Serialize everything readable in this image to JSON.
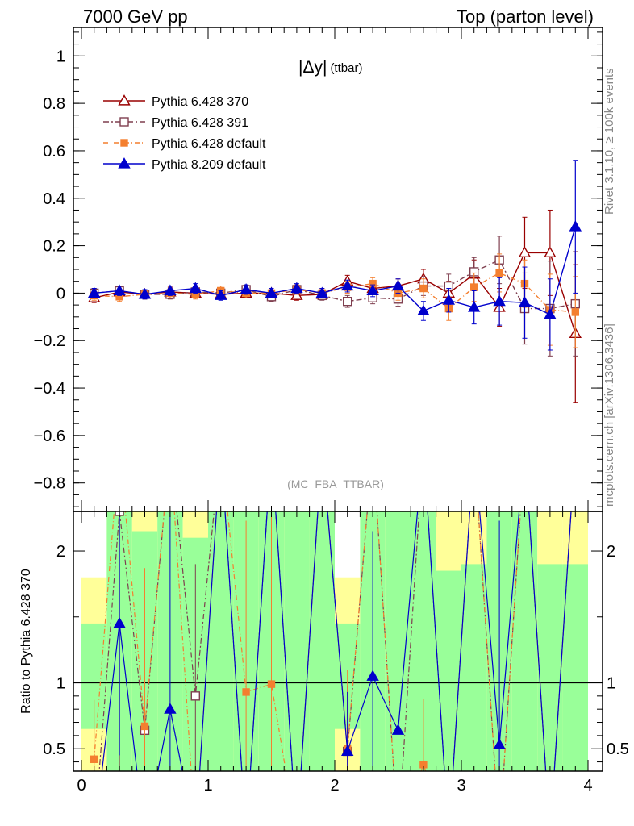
{
  "header": {
    "left": "7000 GeV pp",
    "right": "Top (parton level)"
  },
  "side_labels": {
    "rivet": "Rivet 3.1.10, ≥ 100k events",
    "mcplots": "mcplots.cern.ch [arXiv:1306.3436]"
  },
  "chart_data": {
    "type": "line",
    "title": "|Δy| (ttbar)",
    "title_main": "|Δy|",
    "title_sub": "(ttbar)",
    "watermark": "(MC_FBA_TTBAR)",
    "xlim": [
      0,
      4
    ],
    "ylim": [
      -0.92,
      1.12
    ],
    "x_ticks": [
      0,
      1,
      2,
      3,
      4
    ],
    "y_ticks": [
      -0.8,
      -0.6,
      -0.4,
      -0.2,
      0,
      0.2,
      0.4,
      0.6,
      0.8,
      1
    ],
    "y_tick_labels": [
      "−0.8",
      "−0.6",
      "−0.4",
      "−0.2",
      "0",
      "0.2",
      "0.4",
      "0.6",
      "0.8",
      "1"
    ],
    "x": [
      0.1,
      0.3,
      0.5,
      0.7,
      0.9,
      1.1,
      1.3,
      1.5,
      1.7,
      1.9,
      2.1,
      2.3,
      2.5,
      2.7,
      2.9,
      3.1,
      3.3,
      3.5,
      3.7,
      3.9
    ],
    "series": [
      {
        "name": "Pythia 6.428 370",
        "color": "#990000",
        "marker": "open-triangle",
        "dash": "",
        "values": [
          -0.02,
          0.005,
          -0.005,
          0.005,
          0.0,
          -0.005,
          0.0,
          0.0,
          -0.01,
          -0.005,
          0.05,
          0.02,
          0.03,
          0.06,
          0.0,
          0.08,
          -0.06,
          0.17,
          0.17,
          -0.17
        ],
        "errors": [
          0.02,
          0.02,
          0.02,
          0.02,
          0.02,
          0.02,
          0.02,
          0.02,
          0.02,
          0.02,
          0.025,
          0.025,
          0.03,
          0.04,
          0.05,
          0.06,
          0.08,
          0.15,
          0.18,
          0.29
        ]
      },
      {
        "name": "Pythia 6.428 391",
        "color": "#7f3f4f",
        "marker": "open-square",
        "dash": "7,3,2,3",
        "values": [
          0.0,
          0.01,
          -0.005,
          -0.005,
          0.005,
          0.0,
          0.015,
          -0.015,
          0.015,
          -0.01,
          -0.035,
          -0.02,
          -0.025,
          0.03,
          0.03,
          0.09,
          0.14,
          -0.065,
          -0.065,
          -0.045
        ],
        "errors": [
          0.02,
          0.02,
          0.02,
          0.02,
          0.02,
          0.02,
          0.02,
          0.02,
          0.02,
          0.02,
          0.025,
          0.025,
          0.03,
          0.04,
          0.05,
          0.06,
          0.1,
          0.15,
          0.2,
          0.22
        ]
      },
      {
        "name": "Pythia 6.428 default",
        "color": "#f47f2f",
        "marker": "filled-square",
        "dash": "6,3,1,3",
        "values": [
          -0.01,
          -0.015,
          -0.005,
          0.0,
          -0.005,
          0.01,
          0.0,
          0.0,
          0.015,
          0.0,
          0.025,
          0.04,
          0.0,
          0.02,
          -0.065,
          0.025,
          0.085,
          0.04,
          -0.07,
          -0.08
        ],
        "errors": [
          0.02,
          0.02,
          0.02,
          0.02,
          0.02,
          0.02,
          0.02,
          0.02,
          0.02,
          0.02,
          0.025,
          0.025,
          0.03,
          0.04,
          0.05,
          0.06,
          0.08,
          0.1,
          0.15,
          0.15
        ]
      },
      {
        "name": "Pythia 8.209 default",
        "color": "#0000cc",
        "marker": "filled-triangle",
        "dash": "",
        "values": [
          0.0,
          0.01,
          -0.005,
          0.01,
          0.02,
          -0.01,
          0.015,
          0.0,
          0.02,
          0.0,
          0.03,
          0.01,
          0.03,
          -0.075,
          -0.03,
          -0.06,
          -0.035,
          -0.04,
          -0.09,
          0.28
        ],
        "errors": [
          0.02,
          0.02,
          0.02,
          0.02,
          0.02,
          0.02,
          0.02,
          0.02,
          0.02,
          0.02,
          0.025,
          0.025,
          0.03,
          0.04,
          0.05,
          0.07,
          0.1,
          0.15,
          0.15,
          0.28
        ]
      }
    ],
    "ratio": {
      "ylabel": "Ratio to Pythia 6.428 370",
      "ylim": [
        0.33,
        2.3
      ],
      "y_ticks": [
        0.5,
        1,
        2
      ],
      "y_tick_labels": [
        "0.5",
        "1",
        "2"
      ],
      "x_tick_labels": [
        "0",
        "1",
        "2",
        "3",
        "4"
      ],
      "band_colors": {
        "inner": "#99ff99",
        "outer": "#ffff99"
      },
      "green_bands": [
        [
          0.0,
          0.0,
          0.0
        ],
        [
          0.0,
          2.3,
          2.3
        ],
        [
          0.0,
          2.3,
          2.3
        ],
        [
          0.0,
          2.3,
          2.3
        ],
        [
          0.0,
          2.3,
          2.3
        ],
        [
          0.0,
          2.3,
          2.3
        ],
        [
          0.0,
          2.3,
          2.3
        ],
        [
          0.0,
          2.3,
          2.3
        ],
        [
          0.0,
          2.3,
          2.3
        ],
        [
          0.0,
          2.3,
          2.3
        ],
        [
          0.0,
          2.3,
          2.3
        ],
        [
          0.0,
          2.3,
          2.3
        ],
        [
          0.0,
          2.3,
          2.3
        ],
        [
          0.0,
          2.3,
          2.3
        ],
        [
          0.0,
          2.3,
          2.3
        ],
        [
          0.0,
          2.3,
          2.3
        ],
        [
          0.0,
          2.3,
          2.3
        ],
        [
          0.0,
          2.3,
          2.3
        ],
        [
          0.0,
          2.3,
          2.3
        ],
        [
          0.0,
          2.3,
          2.3
        ]
      ],
      "bands": [
        {
          "x0": 0.0,
          "x1": 0.2,
          "g_lo": 0.65,
          "g_hi": 1.45,
          "y_lo": 0.33,
          "y_hi": 1.8
        },
        {
          "x0": 0.2,
          "x1": 0.4,
          "g_lo": 0.33,
          "g_hi": 2.3,
          "y_lo": 0.33,
          "y_hi": 2.3
        },
        {
          "x0": 0.4,
          "x1": 0.6,
          "g_lo": 0.33,
          "g_hi": 2.15,
          "y_lo": 0.33,
          "y_hi": 2.3
        },
        {
          "x0": 0.6,
          "x1": 0.8,
          "g_lo": 0.33,
          "g_hi": 2.3,
          "y_lo": 0.33,
          "y_hi": 2.3
        },
        {
          "x0": 0.8,
          "x1": 1.0,
          "g_lo": 0.33,
          "g_hi": 2.1,
          "y_lo": 0.33,
          "y_hi": 2.3
        },
        {
          "x0": 1.0,
          "x1": 1.2,
          "g_lo": 0.33,
          "g_hi": 2.3,
          "y_lo": 0.33,
          "y_hi": 2.3
        },
        {
          "x0": 1.2,
          "x1": 1.4,
          "g_lo": 0.33,
          "g_hi": 2.3,
          "y_lo": 0.33,
          "y_hi": 2.3
        },
        {
          "x0": 1.4,
          "x1": 1.6,
          "g_lo": 0.33,
          "g_hi": 2.3,
          "y_lo": 0.33,
          "y_hi": 2.3
        },
        {
          "x0": 1.6,
          "x1": 1.8,
          "g_lo": 0.33,
          "g_hi": 2.3,
          "y_lo": 0.33,
          "y_hi": 2.3
        },
        {
          "x0": 1.8,
          "x1": 2.0,
          "g_lo": 0.33,
          "g_hi": 2.3,
          "y_lo": 0.33,
          "y_hi": 2.3
        },
        {
          "x0": 2.0,
          "x1": 2.2,
          "g_lo": 0.65,
          "g_hi": 1.45,
          "y_lo": 0.33,
          "y_hi": 1.8
        },
        {
          "x0": 2.2,
          "x1": 2.4,
          "g_lo": 0.33,
          "g_hi": 2.3,
          "y_lo": 0.33,
          "y_hi": 2.3
        },
        {
          "x0": 2.4,
          "x1": 2.6,
          "g_lo": 0.33,
          "g_hi": 2.3,
          "y_lo": 0.33,
          "y_hi": 2.3
        },
        {
          "x0": 2.6,
          "x1": 2.8,
          "g_lo": 0.33,
          "g_hi": 2.3,
          "y_lo": 0.33,
          "y_hi": 2.3
        },
        {
          "x0": 2.8,
          "x1": 3.0,
          "g_lo": 0.33,
          "g_hi": 1.85,
          "y_lo": 0.33,
          "y_hi": 2.3
        },
        {
          "x0": 3.0,
          "x1": 3.2,
          "g_lo": 0.33,
          "g_hi": 1.9,
          "y_lo": 0.33,
          "y_hi": 2.3
        },
        {
          "x0": 3.2,
          "x1": 3.4,
          "g_lo": 0.33,
          "g_hi": 2.3,
          "y_lo": 0.33,
          "y_hi": 2.3
        },
        {
          "x0": 3.4,
          "x1": 3.6,
          "g_lo": 0.33,
          "g_hi": 2.3,
          "y_lo": 0.33,
          "y_hi": 2.3
        },
        {
          "x0": 3.6,
          "x1": 3.8,
          "g_lo": 0.33,
          "g_hi": 1.9,
          "y_lo": 0.33,
          "y_hi": 2.3
        },
        {
          "x0": 3.8,
          "x1": 4.0,
          "g_lo": 0.33,
          "g_hi": 1.9,
          "y_lo": 0.33,
          "y_hi": 2.3
        }
      ],
      "series": [
        {
          "name": "Pythia 6.428 391",
          "values": [
            null,
            2.3,
            0.64,
            null,
            0.9,
            null,
            null,
            null,
            null,
            null,
            0.48,
            null,
            null,
            null,
            null,
            null,
            null,
            null,
            null,
            null
          ],
          "errors": [
            null,
            2.5,
            1.2,
            null,
            1.0,
            null,
            null,
            null,
            null,
            null,
            0.5,
            null,
            null,
            null,
            null,
            null,
            null,
            null,
            null,
            null
          ]
        },
        {
          "name": "Pythia 6.428 default",
          "values": [
            0.42,
            null,
            0.67,
            null,
            null,
            null,
            0.93,
            0.99,
            null,
            null,
            0.5,
            null,
            null,
            0.38,
            null,
            null,
            null,
            null,
            null,
            null
          ],
          "errors": [
            0.45,
            null,
            1.2,
            null,
            null,
            null,
            1.3,
            1.3,
            null,
            null,
            0.6,
            null,
            null,
            0.5,
            null,
            null,
            null,
            null,
            null,
            null
          ]
        },
        {
          "name": "Pythia 8.209 default",
          "values": [
            null,
            1.45,
            null,
            0.8,
            null,
            null,
            null,
            null,
            null,
            null,
            0.48,
            1.05,
            0.64,
            null,
            null,
            null,
            0.53,
            null,
            null,
            null
          ],
          "errors": [
            null,
            1.0,
            null,
            1.6,
            null,
            null,
            null,
            null,
            null,
            null,
            0.45,
            1.1,
            0.9,
            null,
            null,
            null,
            1.7,
            null,
            null,
            null
          ]
        }
      ]
    }
  }
}
